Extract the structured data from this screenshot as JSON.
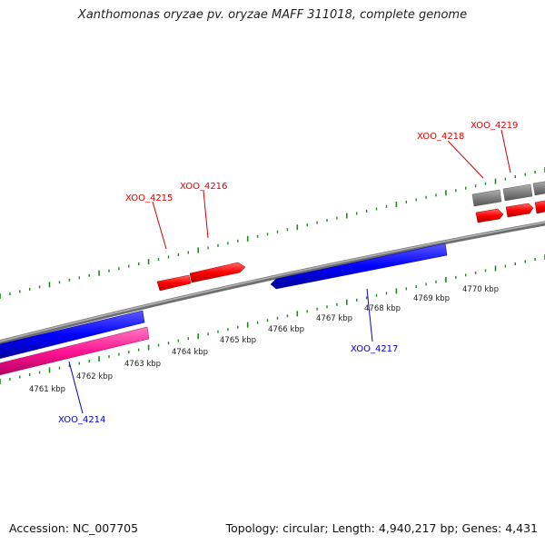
{
  "title": "Xanthomonas oryzae pv. oryzae MAFF 311018, complete genome",
  "footer": {
    "accession": "Accession: NC_007705",
    "summary": "Topology: circular; Length: 4,940,217 bp; Genes: 4,431"
  },
  "colors": {
    "genome_line": "#888888",
    "tick": "#1a8a1a",
    "forward_label": "#e00000",
    "reverse_label": "#0000cc",
    "gene_red": "#ff0000",
    "gene_blue": "#0000ff",
    "gene_magenta": "#ff1493",
    "gene_grey": "#808080"
  },
  "scale_labels": [
    "4761 kbp",
    "4762 kbp",
    "4763 kbp",
    "4764 kbp",
    "4765 kbp",
    "4766 kbp",
    "4767 kbp",
    "4768 kbp",
    "4769 kbp",
    "4770 kbp"
  ],
  "gene_labels": {
    "xoo_4214": "XOO_4214",
    "xoo_4215": "XOO_4215",
    "xoo_4216": "XOO_4216",
    "xoo_4217": "XOO_4217",
    "xoo_4218": "XOO_4218",
    "xoo_4219": "XOO_4219"
  }
}
